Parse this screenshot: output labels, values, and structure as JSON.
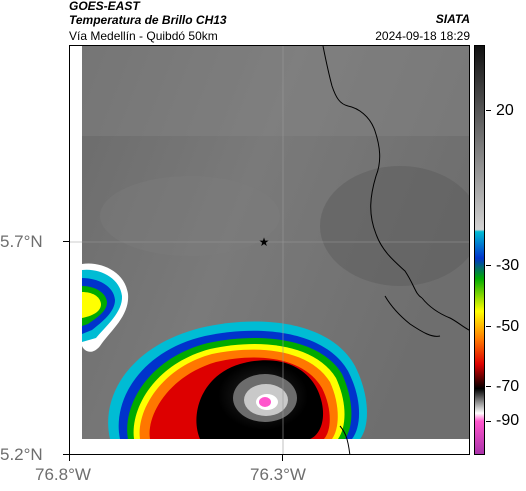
{
  "header": {
    "satellite": "GOES-EAST",
    "product": "Temperatura de Brillo CH13",
    "region": "Vía Medellín - Quibdó 50km",
    "source": "SIATA",
    "datetime": "2024-09-18 18:29"
  },
  "axes": {
    "y_ticks": [
      "5.7°N",
      "5.2°N"
    ],
    "x_ticks": [
      "76.8°W",
      "76.3°W"
    ]
  },
  "colorbar": {
    "labels": [
      "20",
      "-30",
      "-50",
      "-70",
      "-90"
    ],
    "colors": [
      "#111111",
      "#c8c8c8",
      "#00bcd4",
      "#0033cc",
      "#00aa00",
      "#ffff00",
      "#ff7700",
      "#dd0000",
      "#000000",
      "#ffffff",
      "#ff55cc"
    ]
  },
  "map": {
    "marker": "star-marker",
    "features": [
      "storm-cell",
      "border-lines",
      "gridlines"
    ]
  }
}
